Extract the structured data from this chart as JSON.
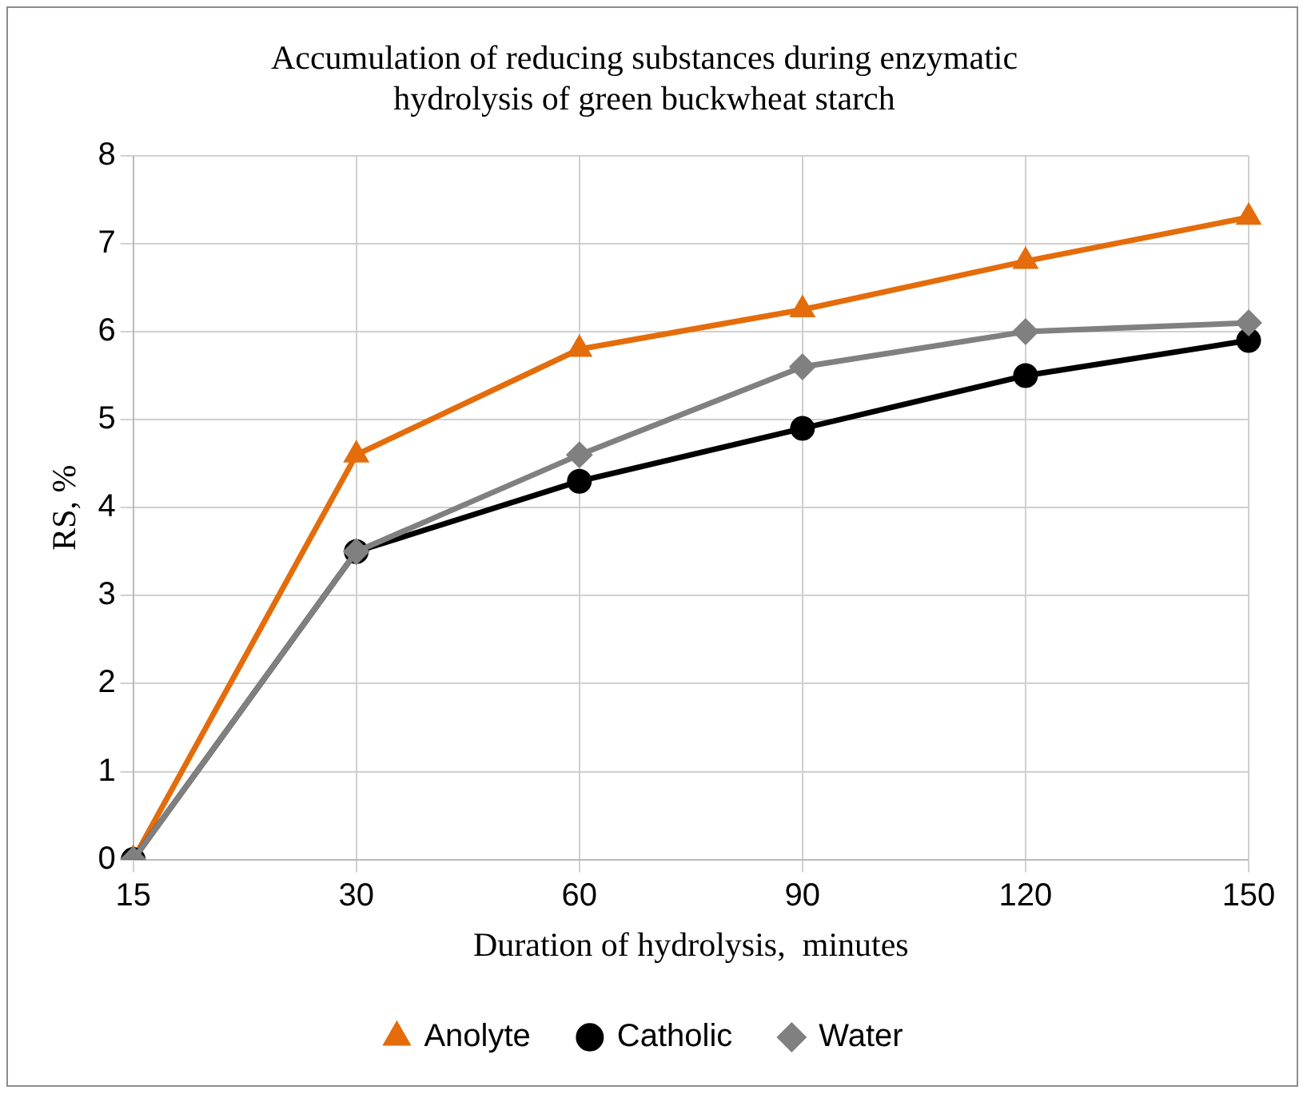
{
  "chart_data": {
    "type": "line",
    "title": "Accumulation of reducing substances during enzymatic hydrolysis of green buckwheat starch",
    "xlabel": "Duration of hydrolysis,  minutes",
    "ylabel": "RS, %",
    "categories": [
      "15",
      "30",
      "60",
      "90",
      "120",
      "150"
    ],
    "series": [
      {
        "name": "Anolyte",
        "color": "#e46c0a",
        "marker": "triangle",
        "values": [
          0,
          4.6,
          5.8,
          6.25,
          6.8,
          7.3
        ]
      },
      {
        "name": "Catholic",
        "color": "#000000",
        "marker": "circle",
        "values": [
          0,
          3.5,
          4.3,
          4.9,
          5.5,
          5.9
        ]
      },
      {
        "name": "Water",
        "color": "#808080",
        "marker": "diamond",
        "values": [
          0,
          3.5,
          4.6,
          5.6,
          6.0,
          6.1
        ]
      }
    ],
    "ylim": [
      0,
      8
    ],
    "yticks": [
      0,
      1,
      2,
      3,
      4,
      5,
      6,
      7,
      8
    ],
    "grid": true,
    "legend": "bottom",
    "line_style": "solid"
  }
}
